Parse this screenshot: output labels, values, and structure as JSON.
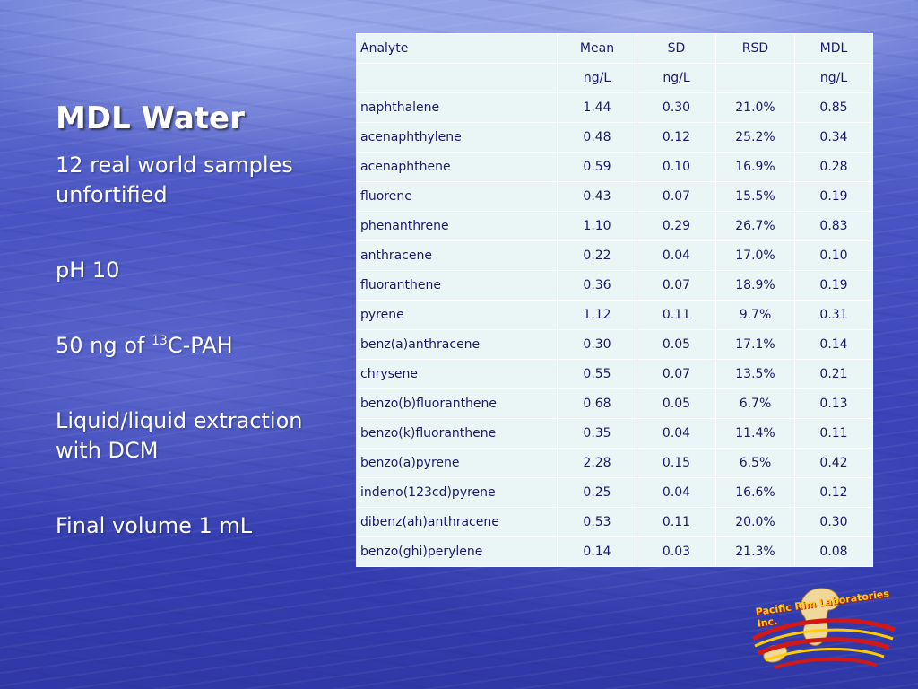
{
  "slide": {
    "title": "MDL Water",
    "bullets": [
      "12 real world samples unfortified",
      "pH 10",
      "Liquid/liquid extraction with DCM",
      "Final volume 1 mL"
    ],
    "spike_bullet": {
      "before": "50 ng of ",
      "superscript": "13",
      "after": "C-PAH"
    }
  },
  "table": {
    "header": [
      "Analyte",
      "Mean",
      "SD",
      "RSD",
      "MDL"
    ],
    "units": [
      "",
      "ng/L",
      "ng/L",
      "",
      "ng/L"
    ],
    "rows": [
      [
        "naphthalene",
        "1.44",
        "0.30",
        "21.0%",
        "0.85"
      ],
      [
        "acenaphthylene",
        "0.48",
        "0.12",
        "25.2%",
        "0.34"
      ],
      [
        "acenaphthene",
        "0.59",
        "0.10",
        "16.9%",
        "0.28"
      ],
      [
        "fluorene",
        "0.43",
        "0.07",
        "15.5%",
        "0.19"
      ],
      [
        "phenanthrene",
        "1.10",
        "0.29",
        "26.7%",
        "0.83"
      ],
      [
        "anthracene",
        "0.22",
        "0.04",
        "17.0%",
        "0.10"
      ],
      [
        "fluoranthene",
        "0.36",
        "0.07",
        "18.9%",
        "0.19"
      ],
      [
        "pyrene",
        "1.12",
        "0.11",
        "9.7%",
        "0.31"
      ],
      [
        "benz(a)anthracene",
        "0.30",
        "0.05",
        "17.1%",
        "0.14"
      ],
      [
        "chrysene",
        "0.55",
        "0.07",
        "13.5%",
        "0.21"
      ],
      [
        "benzo(b)fluoranthene",
        "0.68",
        "0.05",
        "6.7%",
        "0.13"
      ],
      [
        "benzo(k)fluoranthene",
        "0.35",
        "0.04",
        "11.4%",
        "0.11"
      ],
      [
        "benzo(a)pyrene",
        "2.28",
        "0.15",
        "6.5%",
        "0.42"
      ],
      [
        "indeno(123cd)pyrene",
        "0.25",
        "0.04",
        "16.6%",
        "0.12"
      ],
      [
        "dibenz(ah)anthracene",
        "0.53",
        "0.11",
        "20.0%",
        "0.30"
      ],
      [
        "benzo(ghi)perylene",
        "0.14",
        "0.03",
        "21.3%",
        "0.08"
      ]
    ]
  },
  "logo": {
    "text": "Pacific Rim Laboratories Inc.",
    "icon": "globe-swoosh-logo"
  },
  "colors": {
    "table_bg": "#eaf6f6",
    "table_text": "#1a1a6a",
    "title": "#ffffff",
    "logo_red": "#d01818",
    "logo_yellow": "#ffcc00"
  }
}
